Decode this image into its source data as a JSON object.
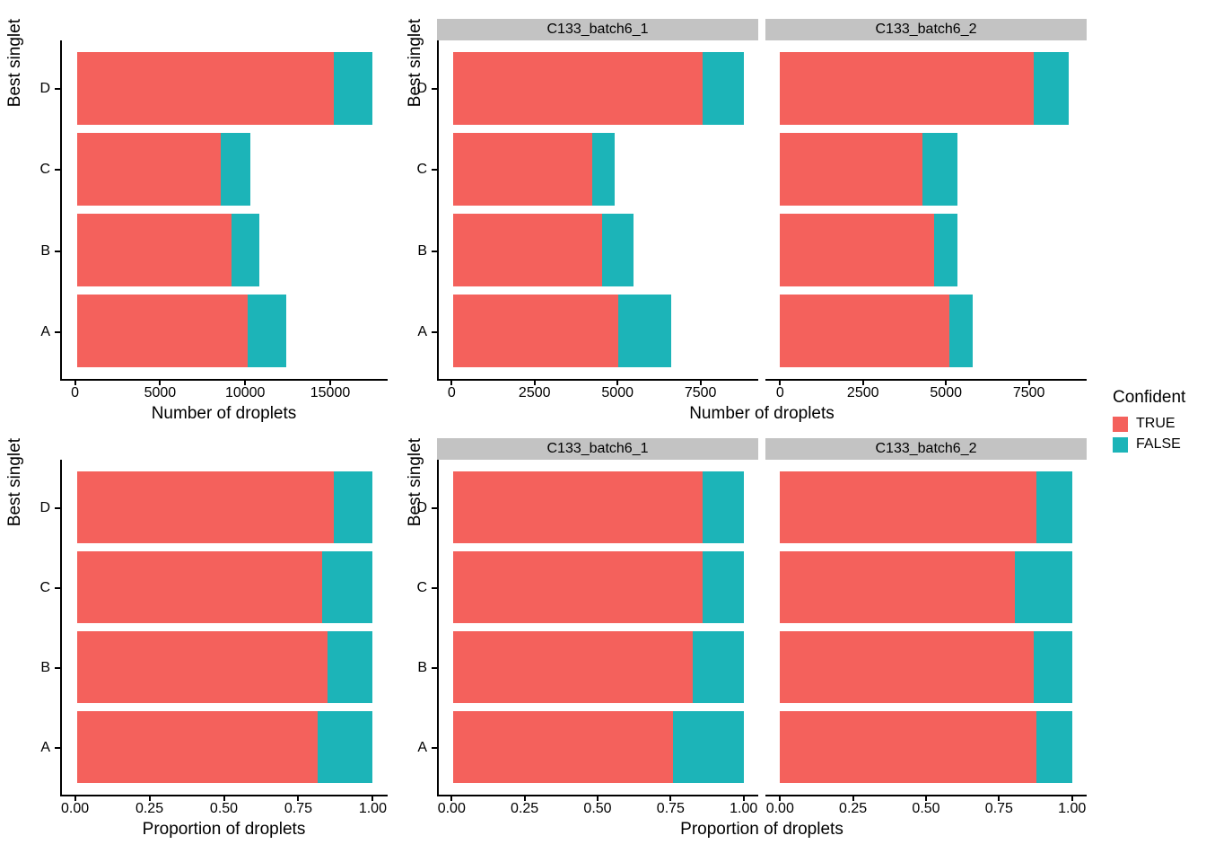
{
  "figure": {
    "background": "#FFFFFF"
  },
  "palette": {
    "true_color": "#F4615C",
    "false_color": "#1CB4B8",
    "strip_bg": "#C3C3C3",
    "strip_text": "#000000",
    "axis_color": "#000000",
    "text_color": "#000000",
    "panel_bg": "#FFFFFF"
  },
  "legend": {
    "title": "Confident",
    "items": [
      {
        "label": "TRUE",
        "key": "true"
      },
      {
        "label": "FALSE",
        "key": "false"
      }
    ]
  },
  "chart_data": [
    {
      "id": "droplet-counts-overall",
      "type": "bar",
      "orientation": "horizontal",
      "stacked": true,
      "grid": false,
      "xlabel": "Number of droplets",
      "ylabel": "Best singlet",
      "categories": [
        "A",
        "B",
        "C",
        "D"
      ],
      "xticks": [
        0,
        5000,
        10000,
        15000
      ],
      "xtick_labels": [
        "0",
        "5000",
        "10000",
        "15000"
      ],
      "xlim": [
        0,
        17500
      ],
      "facets": [
        {
          "label": null,
          "series": [
            {
              "name": "TRUE",
              "values": [
                10100,
                9150,
                8500,
                15200
              ]
            },
            {
              "name": "FALSE",
              "values": [
                2300,
                1650,
                1750,
                2300
              ]
            }
          ]
        }
      ]
    },
    {
      "id": "droplet-counts-by-sample",
      "type": "bar",
      "orientation": "horizontal",
      "stacked": true,
      "grid": false,
      "xlabel": "Number of droplets",
      "ylabel": "Best singlet",
      "categories": [
        "A",
        "B",
        "C",
        "D"
      ],
      "xticks": [
        0,
        2500,
        5000,
        7500
      ],
      "xtick_labels": [
        "0",
        "2500",
        "5000",
        "7500"
      ],
      "xlim": [
        0,
        8800
      ],
      "facets": [
        {
          "label": "C133_batch6_1",
          "series": [
            {
              "name": "TRUE",
              "values": [
                5000,
                4500,
                4200,
                7550
              ]
            },
            {
              "name": "FALSE",
              "values": [
                1600,
                950,
                700,
                1250
              ]
            }
          ]
        },
        {
          "label": "C133_batch6_2",
          "series": [
            {
              "name": "TRUE",
              "values": [
                5100,
                4650,
                4300,
                7650
              ]
            },
            {
              "name": "FALSE",
              "values": [
                700,
                700,
                1050,
                1050
              ]
            }
          ]
        }
      ]
    },
    {
      "id": "droplet-proportions-overall",
      "type": "bar",
      "orientation": "horizontal",
      "stacked": true,
      "grid": false,
      "xlabel": "Proportion of droplets",
      "ylabel": "Best singlet",
      "categories": [
        "A",
        "B",
        "C",
        "D"
      ],
      "xticks": [
        0,
        0.25,
        0.5,
        0.75,
        1
      ],
      "xtick_labels": [
        "0.00",
        "0.25",
        "0.50",
        "0.75",
        "1.00"
      ],
      "xlim": [
        0,
        1
      ],
      "facets": [
        {
          "label": null,
          "series": [
            {
              "name": "TRUE",
              "values": [
                0.815,
                0.847,
                0.829,
                0.869
              ]
            },
            {
              "name": "FALSE",
              "values": [
                0.185,
                0.153,
                0.171,
                0.131
              ]
            }
          ]
        }
      ]
    },
    {
      "id": "droplet-proportions-by-sample",
      "type": "bar",
      "orientation": "horizontal",
      "stacked": true,
      "grid": false,
      "xlabel": "Proportion of droplets",
      "ylabel": "Best singlet",
      "categories": [
        "A",
        "B",
        "C",
        "D"
      ],
      "xticks": [
        0,
        0.25,
        0.5,
        0.75,
        1
      ],
      "xtick_labels": [
        "0.00",
        "0.25",
        "0.50",
        "0.75",
        "1.00"
      ],
      "xlim": [
        0,
        1
      ],
      "facets": [
        {
          "label": "C133_batch6_1",
          "series": [
            {
              "name": "TRUE",
              "values": [
                0.758,
                0.826,
                0.857,
                0.858
              ]
            },
            {
              "name": "FALSE",
              "values": [
                0.242,
                0.174,
                0.143,
                0.142
              ]
            }
          ]
        },
        {
          "label": "C133_batch6_2",
          "series": [
            {
              "name": "TRUE",
              "values": [
                0.879,
                0.869,
                0.804,
                0.879
              ]
            },
            {
              "name": "FALSE",
              "values": [
                0.121,
                0.131,
                0.196,
                0.121
              ]
            }
          ]
        }
      ]
    }
  ]
}
